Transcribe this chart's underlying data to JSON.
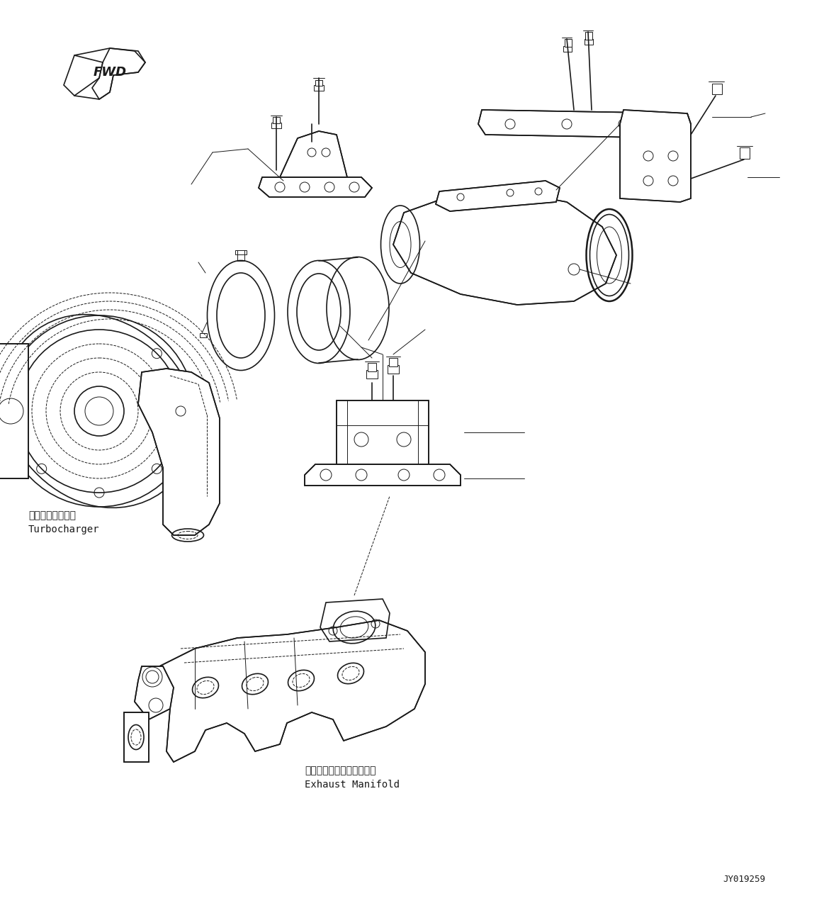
{
  "bg_color": "#ffffff",
  "line_color": "#1a1a1a",
  "fig_width": 11.63,
  "fig_height": 12.81,
  "dpi": 100,
  "labels": {
    "turbocharger_jp": "ターボチャージャ",
    "turbocharger_en": "Turbocharger",
    "exhaust_jp": "エキゾーストマニホールド",
    "exhaust_en": "Exhaust Manifold",
    "fwd": "FWD",
    "part_number": "JY019259"
  },
  "font_sizes": {
    "label_jp": 10,
    "label_en": 10,
    "fwd": 13,
    "part_number": 9
  }
}
